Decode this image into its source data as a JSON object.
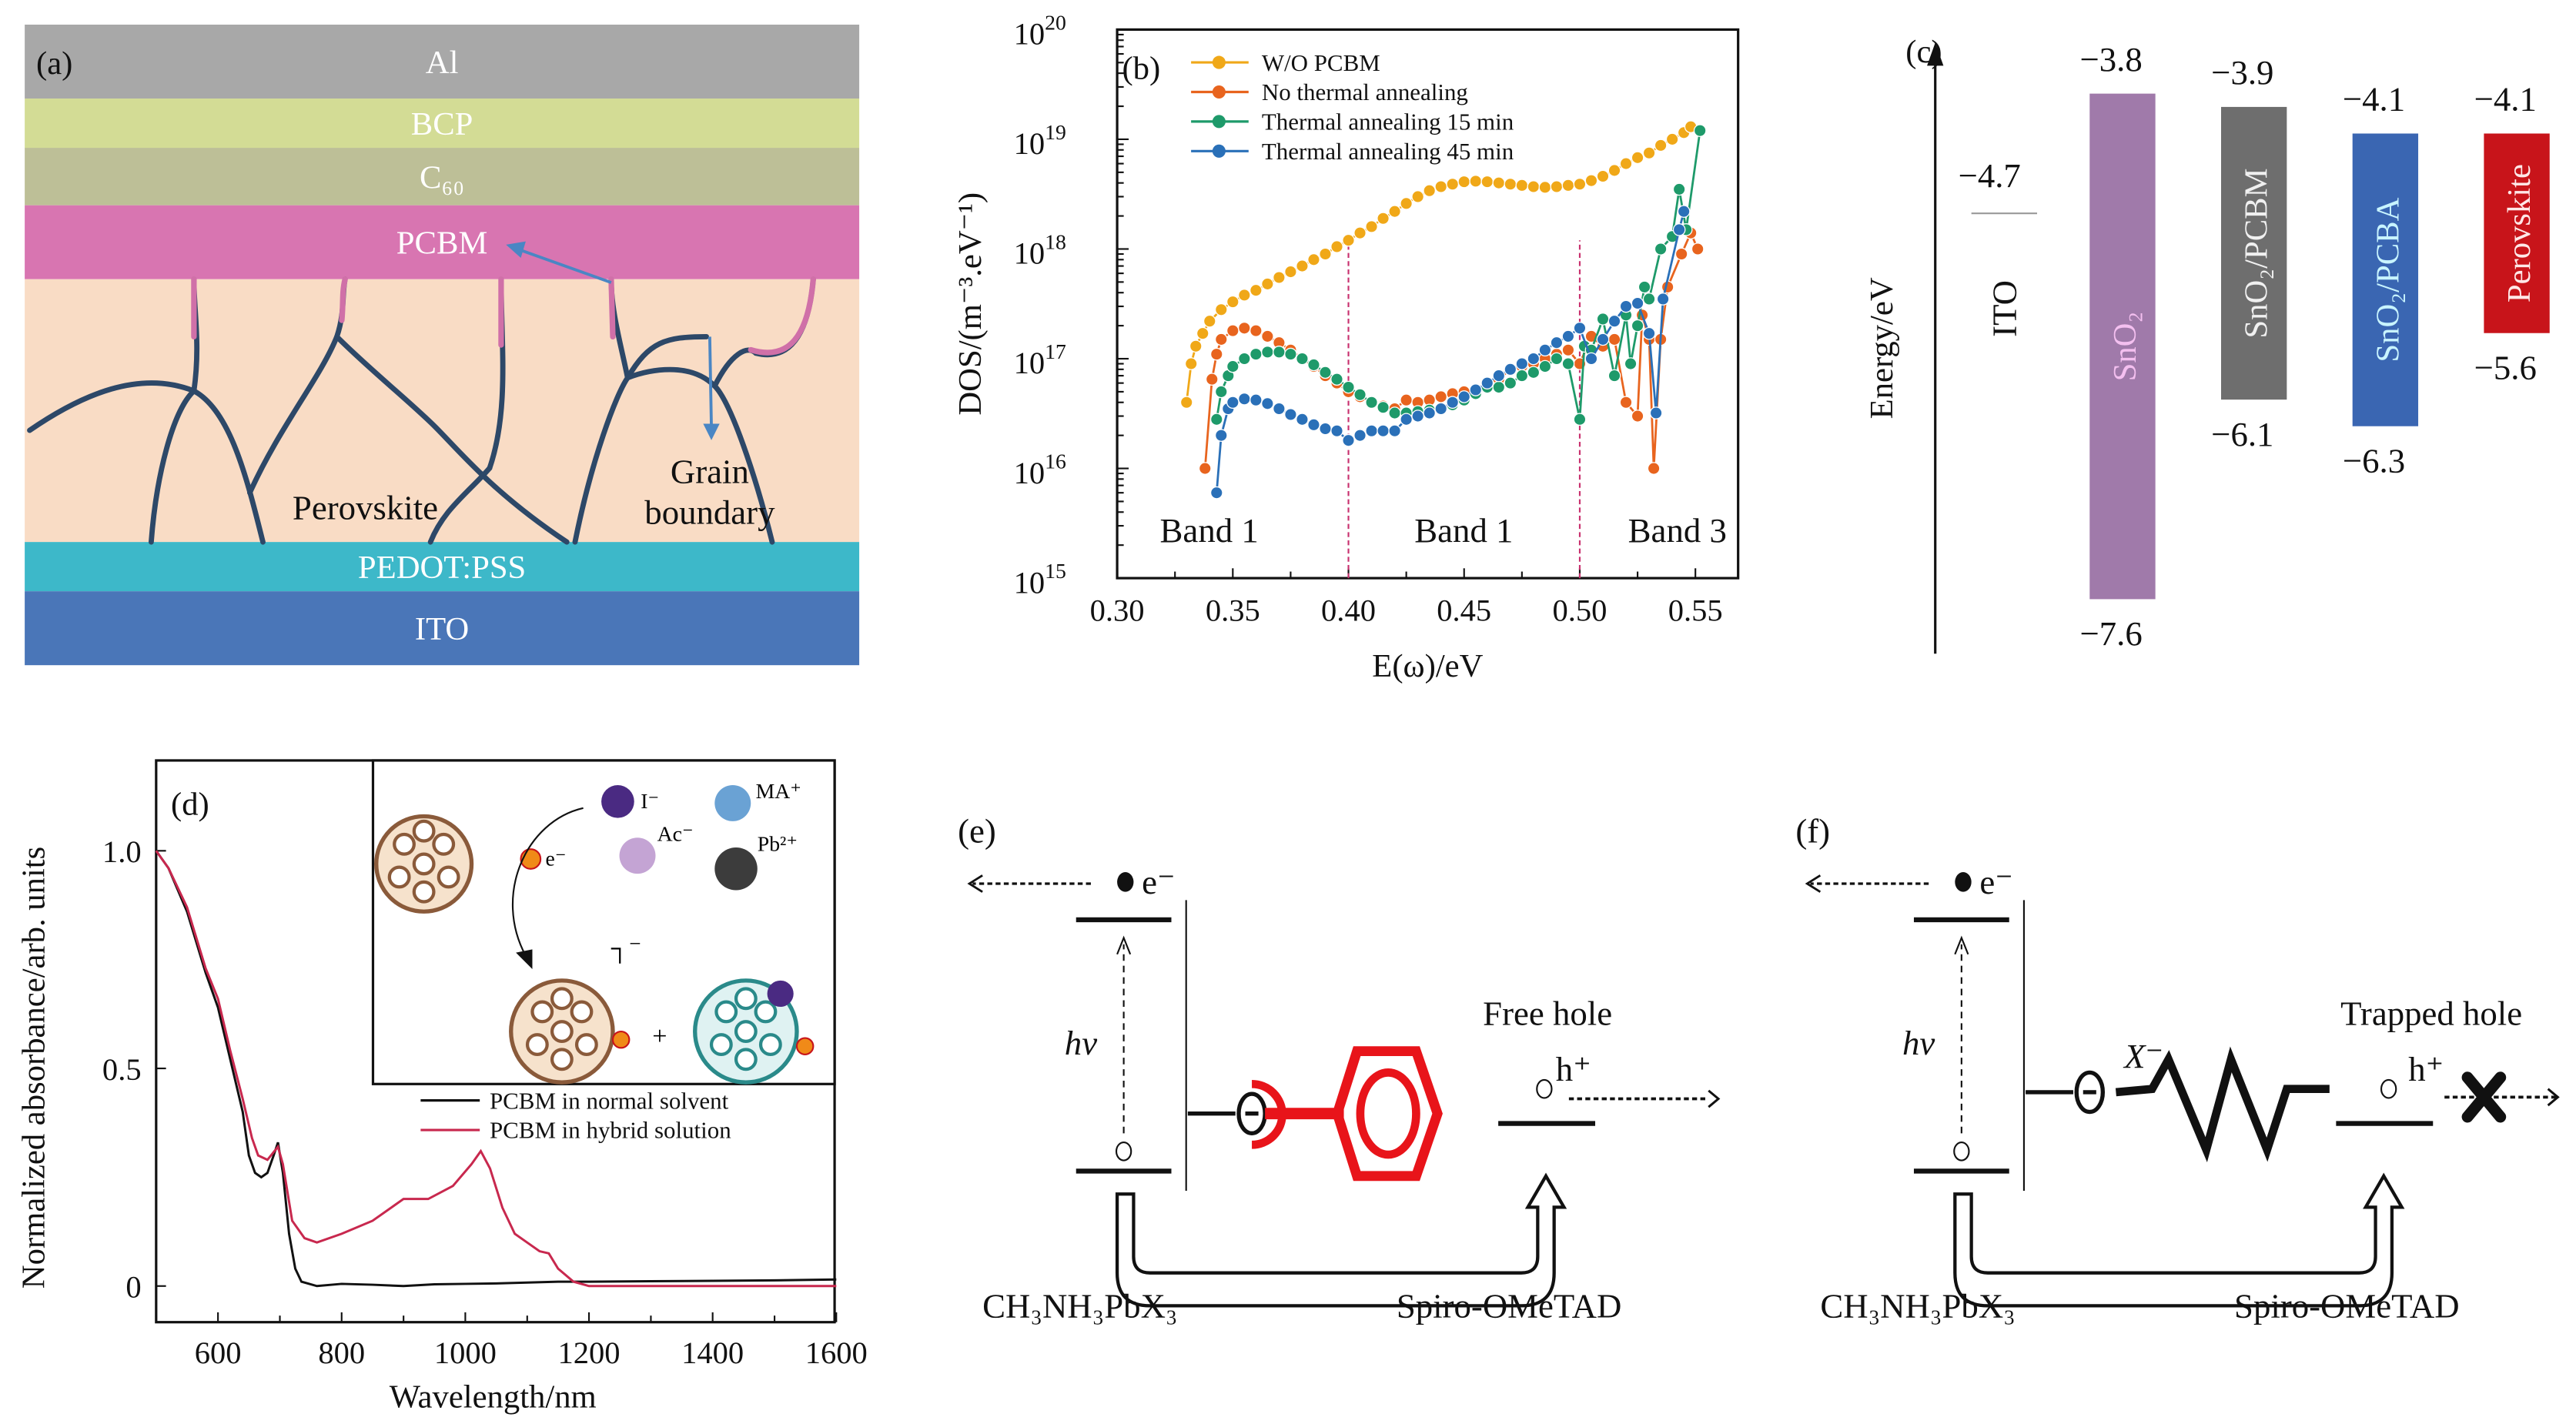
{
  "panel_a": {
    "label": "(a)",
    "layers": [
      {
        "name": "Al",
        "color": "#a8a8a8"
      },
      {
        "name": "BCP",
        "color": "#d3dc95"
      },
      {
        "name": "C₆₀",
        "color": "#bdbf97"
      },
      {
        "name": "PCBM",
        "color": "#d875b1"
      },
      {
        "name": "",
        "color": "#f9dcc5"
      },
      {
        "name": "PEDOT:PSS",
        "color": "#3db8c9"
      },
      {
        "name": "ITO",
        "color": "#4a76b8"
      }
    ],
    "perovskite_label": "Perovskite",
    "grain_label_line1": "Grain",
    "grain_label_line2": "boundary",
    "boundary_color": "#2d4868",
    "boundary_tip_color": "#d070a8",
    "arrow_color": "#4a86c4"
  },
  "chart_data": [
    {
      "panel": "(b)",
      "type": "line",
      "xlabel": "E(ω)/eV",
      "ylabel": "DOS/(m⁻³.eV⁻¹)",
      "xlim": [
        0.3,
        0.57
      ],
      "ylim": [
        1000000000000000.0,
        1e+20
      ],
      "yscale": "log",
      "xticks": [
        "0.30",
        "0.35",
        "0.40",
        "0.45",
        "0.50",
        "0.55"
      ],
      "yticks": [
        {
          "base": "10",
          "exp": "15"
        },
        {
          "base": "10",
          "exp": "16"
        },
        {
          "base": "10",
          "exp": "17"
        },
        {
          "base": "10",
          "exp": "18"
        },
        {
          "base": "10",
          "exp": "19"
        },
        {
          "base": "10",
          "exp": "20"
        }
      ],
      "legend_position": "top-left",
      "dividers": [
        0.4,
        0.5
      ],
      "divider_color": "#c8306e",
      "band_labels": [
        "Band 1",
        "Band 1",
        "Band 3"
      ],
      "series": [
        {
          "name": "W/O PCBM",
          "color": "#f0a818",
          "x": [
            0.33,
            0.332,
            0.334,
            0.337,
            0.34,
            0.345,
            0.35,
            0.355,
            0.36,
            0.365,
            0.37,
            0.375,
            0.38,
            0.385,
            0.39,
            0.395,
            0.4,
            0.405,
            0.41,
            0.415,
            0.42,
            0.425,
            0.43,
            0.435,
            0.44,
            0.445,
            0.45,
            0.455,
            0.46,
            0.465,
            0.47,
            0.475,
            0.48,
            0.485,
            0.49,
            0.495,
            0.5,
            0.505,
            0.51,
            0.515,
            0.52,
            0.525,
            0.53,
            0.535,
            0.54,
            0.545,
            0.548
          ],
          "y": [
            4e+16,
            9e+16,
            1.3e+17,
            1.7e+17,
            2.2e+17,
            2.8e+17,
            3.3e+17,
            3.8e+17,
            4.2e+17,
            4.8e+17,
            5.5e+17,
            6.2e+17,
            7e+17,
            8e+17,
            9e+17,
            1.05e+18,
            1.2e+18,
            1.4e+18,
            1.6e+18,
            1.9e+18,
            2.2e+18,
            2.6e+18,
            3e+18,
            3.4e+18,
            3.7e+18,
            3.9e+18,
            4.1e+18,
            4.15e+18,
            4.1e+18,
            4e+18,
            3.9e+18,
            3.8e+18,
            3.7e+18,
            3.65e+18,
            3.7e+18,
            3.8e+18,
            3.9e+18,
            4.2e+18,
            4.6e+18,
            5.2e+18,
            6e+18,
            6.8e+18,
            7.5e+18,
            8.8e+18,
            1e+19,
            1.15e+19,
            1.3e+19
          ]
        },
        {
          "name": "No thermal annealing",
          "color": "#e8641e",
          "x": [
            0.338,
            0.341,
            0.343,
            0.345,
            0.35,
            0.355,
            0.36,
            0.365,
            0.37,
            0.375,
            0.38,
            0.385,
            0.39,
            0.395,
            0.4,
            0.405,
            0.41,
            0.415,
            0.42,
            0.425,
            0.43,
            0.435,
            0.44,
            0.445,
            0.45,
            0.455,
            0.46,
            0.465,
            0.47,
            0.475,
            0.48,
            0.485,
            0.49,
            0.495,
            0.5,
            0.505,
            0.51,
            0.515,
            0.52,
            0.525,
            0.527,
            0.53,
            0.532,
            0.535,
            0.538,
            0.544,
            0.548,
            0.551
          ],
          "y": [
            1e+16,
            6.5e+16,
            1.1e+17,
            1.5e+17,
            1.8e+17,
            1.9e+17,
            1.8e+17,
            1.6e+17,
            1.4e+17,
            1.2e+17,
            1e+17,
            8.5e+16,
            7e+16,
            6e+16,
            5e+16,
            4.5e+16,
            4e+16,
            3.7e+16,
            3.5e+16,
            4.2e+16,
            4e+16,
            4.2e+16,
            4.5e+16,
            4.8e+16,
            5e+16,
            5.2e+16,
            5.5e+16,
            6.5e+16,
            8e+16,
            8.5e+16,
            9e+16,
            1e+17,
            1.1e+17,
            1.2e+17,
            9e+16,
            1.6e+17,
            1.3e+17,
            1.5e+17,
            4e+16,
            3e+16,
            2.5e+17,
            1.5e+17,
            1e+16,
            1.5e+17,
            4.5e+17,
            9e+17,
            1.4e+18,
            1e+18
          ]
        },
        {
          "name": "Thermal annealing 15 min",
          "color": "#1e9a6a",
          "x": [
            0.343,
            0.345,
            0.348,
            0.35,
            0.355,
            0.36,
            0.365,
            0.37,
            0.375,
            0.38,
            0.385,
            0.39,
            0.395,
            0.4,
            0.405,
            0.41,
            0.415,
            0.42,
            0.425,
            0.43,
            0.435,
            0.44,
            0.445,
            0.45,
            0.455,
            0.46,
            0.465,
            0.47,
            0.475,
            0.48,
            0.485,
            0.49,
            0.495,
            0.5,
            0.502,
            0.505,
            0.51,
            0.515,
            0.52,
            0.522,
            0.525,
            0.528,
            0.53,
            0.535,
            0.54,
            0.543,
            0.546,
            0.552
          ],
          "y": [
            2.8e+16,
            5e+16,
            7e+16,
            8.5e+16,
            1e+17,
            1.1e+17,
            1.15e+17,
            1.15e+17,
            1.1e+17,
            1e+17,
            8.8e+16,
            7.5e+16,
            6.5e+16,
            5.5e+16,
            4.7e+16,
            4e+16,
            3.6e+16,
            3.2e+16,
            3.2e+16,
            3.3e+16,
            3.4e+16,
            3.5e+16,
            3.8e+16,
            4.2e+16,
            4.8e+16,
            5.5e+16,
            5.5e+16,
            6e+16,
            7e+16,
            7.5e+16,
            8.5e+16,
            1e+17,
            9e+16,
            2.8e+16,
            1.3e+17,
            1.2e+17,
            2.3e+17,
            7e+16,
            2.5e+17,
            9e+16,
            2e+17,
            4.5e+17,
            3.5e+17,
            1e+18,
            1.3e+18,
            3.5e+18,
            1.5e+18,
            1.2e+19
          ]
        },
        {
          "name": "Thermal annealing 45 min",
          "color": "#2a70b8",
          "x": [
            0.343,
            0.345,
            0.348,
            0.35,
            0.355,
            0.36,
            0.365,
            0.37,
            0.375,
            0.38,
            0.385,
            0.39,
            0.395,
            0.4,
            0.405,
            0.41,
            0.415,
            0.42,
            0.425,
            0.43,
            0.435,
            0.44,
            0.445,
            0.45,
            0.455,
            0.46,
            0.465,
            0.47,
            0.475,
            0.48,
            0.485,
            0.49,
            0.495,
            0.5,
            0.505,
            0.51,
            0.515,
            0.52,
            0.525,
            0.53,
            0.533,
            0.536,
            0.543,
            0.545
          ],
          "y": [
            6000000000000000.0,
            2e+16,
            3.5e+16,
            4e+16,
            4.3e+16,
            4.2e+16,
            3.9e+16,
            3.5e+16,
            3.1e+16,
            2.8e+16,
            2.5e+16,
            2.3e+16,
            2.2e+16,
            1.8e+16,
            2e+16,
            2.2e+16,
            2.2e+16,
            2.2e+16,
            2.8e+16,
            3e+16,
            3.2e+16,
            3.5e+16,
            4e+16,
            4.5e+16,
            5.2e+16,
            6e+16,
            7e+16,
            8e+16,
            9e+16,
            1e+17,
            1.2e+17,
            1.4e+17,
            1.6e+17,
            1.9e+17,
            1e+17,
            1.5e+17,
            2.2e+17,
            3e+17,
            3.2e+17,
            1.7e+17,
            3.2e+16,
            3.5e+17,
            1.5e+18,
            2.2e+18
          ]
        }
      ]
    },
    {
      "panel": "(d)",
      "type": "line",
      "xlabel": "Wavelength/nm",
      "ylabel": "Normalized absorbance/arb. units",
      "xlim": [
        500,
        1600
      ],
      "ylim": [
        -0.08,
        1.2
      ],
      "xticks": [
        "600",
        "800",
        "1000",
        "1200",
        "1400",
        "1600"
      ],
      "yticks": [
        "0",
        "0.5",
        "1.0"
      ],
      "legend_position": "center-right",
      "series": [
        {
          "name": "PCBM in normal solvent",
          "color": "#111111",
          "x": [
            500,
            520,
            550,
            580,
            600,
            620,
            640,
            650,
            660,
            670,
            680,
            690,
            697,
            705,
            715,
            725,
            735,
            760,
            800,
            850,
            900,
            950,
            1000,
            1050,
            1100,
            1150,
            1200,
            1300,
            1400,
            1500,
            1600
          ],
          "y": [
            1.0,
            0.96,
            0.86,
            0.72,
            0.64,
            0.52,
            0.4,
            0.3,
            0.26,
            0.25,
            0.26,
            0.3,
            0.33,
            0.26,
            0.12,
            0.04,
            0.01,
            0.0,
            0.005,
            0.003,
            0.0,
            0.004,
            0.005,
            0.006,
            0.008,
            0.01,
            0.01,
            0.011,
            0.012,
            0.013,
            0.015
          ]
        },
        {
          "name": "PCBM in hybrid solution",
          "color": "#c8284e",
          "x": [
            500,
            520,
            550,
            580,
            600,
            620,
            640,
            655,
            665,
            680,
            697,
            705,
            720,
            740,
            760,
            800,
            850,
            880,
            900,
            940,
            980,
            1010,
            1025,
            1040,
            1060,
            1080,
            1100,
            1120,
            1135,
            1150,
            1175,
            1200,
            1300,
            1400,
            1500,
            1600
          ],
          "y": [
            1.0,
            0.96,
            0.87,
            0.73,
            0.66,
            0.54,
            0.43,
            0.34,
            0.3,
            0.29,
            0.32,
            0.28,
            0.15,
            0.11,
            0.1,
            0.12,
            0.15,
            0.18,
            0.2,
            0.2,
            0.23,
            0.28,
            0.31,
            0.27,
            0.18,
            0.12,
            0.1,
            0.08,
            0.075,
            0.04,
            0.01,
            0.0,
            0.0,
            0.0,
            0.0,
            0.0
          ]
        }
      ],
      "inset": {
        "labels": {
          "iodide": "I⁻",
          "ma": "MA⁺",
          "acetate": "Ac⁻",
          "lead": "Pb²⁺",
          "electron": "e⁻",
          "bracket": "┐⁻",
          "plus": "+"
        }
      }
    }
  ],
  "panel_c": {
    "label": "(c)",
    "ylabel": "Energy/eV",
    "ito": {
      "name": "ITO",
      "level": "−4.7",
      "value": -4.7
    },
    "bars": [
      {
        "name": "SnO₂",
        "top": "−3.8",
        "bottom": "−7.6",
        "top_value": -3.8,
        "bottom_value": -7.6,
        "color": "#a07aaa",
        "text_color": "#f4c0f0"
      },
      {
        "name": "SnO₂/PCBM",
        "top": "−3.9",
        "bottom": "−6.1",
        "top_value": -3.9,
        "bottom_value": -6.1,
        "color": "#6e6e6e",
        "text_color": "#f0f0f0"
      },
      {
        "name": "SnO₂/PCBA",
        "top": "−4.1",
        "bottom": "−6.3",
        "top_value": -4.1,
        "bottom_value": -6.3,
        "color": "#3a66b2",
        "text_color": "#c8f4ff"
      },
      {
        "name": "Perovskite",
        "top": "−4.1",
        "bottom": "−5.6",
        "top_value": -4.1,
        "bottom_value": -5.6,
        "color": "#c8141a",
        "text_color": "#ffe8e8"
      }
    ]
  },
  "panel_e": {
    "label": "(e)",
    "electron": "e⁻",
    "photon": "hν",
    "hole": "h⁺",
    "hole_state": "Free hole",
    "left_material": "CH₃NH₃PbX₃",
    "right_material": "Spiro-OMeTAD",
    "molecule_color": "#e8141a"
  },
  "panel_f": {
    "label": "(f)",
    "electron": "e⁻",
    "photon": "hν",
    "hole": "h⁺",
    "anion": "X⁻",
    "hole_state": "Trapped hole",
    "left_material": "CH₃NH₃PbX₃",
    "right_material": "Spiro-OMeTAD"
  }
}
